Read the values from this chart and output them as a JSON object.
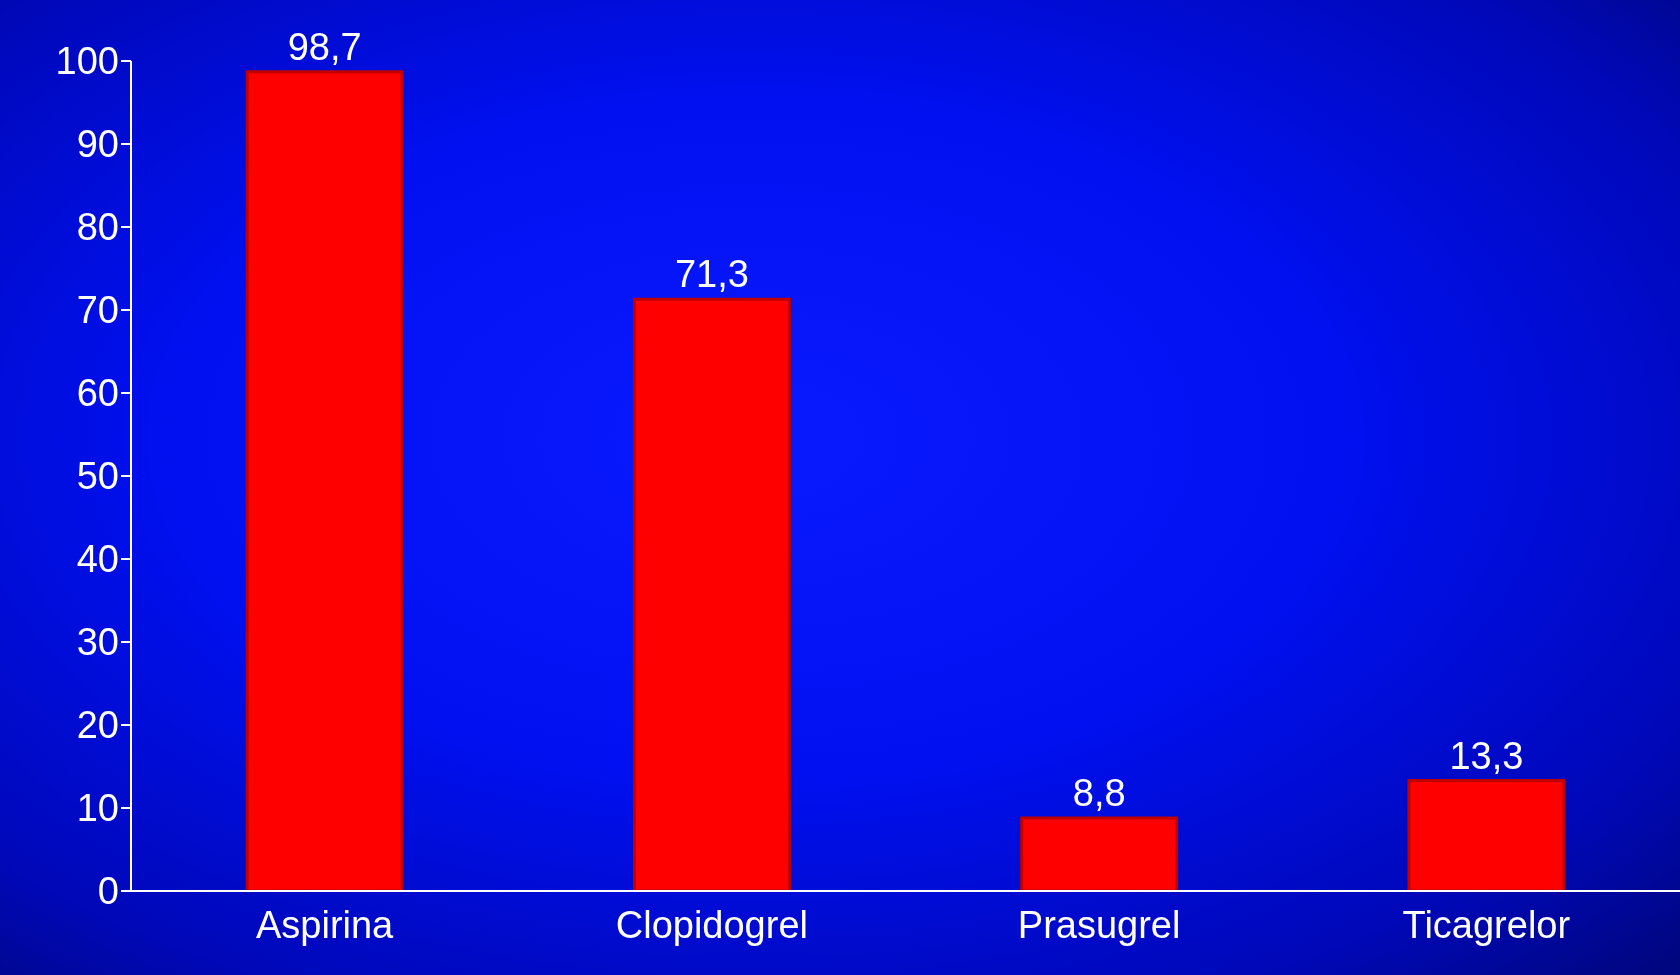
{
  "chart_data": {
    "type": "bar",
    "categories": [
      "Aspirina",
      "Clopidogrel",
      "Prasugrel",
      "Ticagrelor"
    ],
    "values": [
      98.7,
      71.3,
      8.8,
      13.3
    ],
    "color": "#ff0000",
    "value_labels": [
      "98,7",
      "71,3",
      "8,8",
      "13,3"
    ],
    "ylim": [
      0,
      100
    ],
    "yticks": [
      0,
      10,
      20,
      30,
      40,
      50,
      60,
      70,
      80,
      90,
      100
    ],
    "grid": false,
    "legend": false
  }
}
